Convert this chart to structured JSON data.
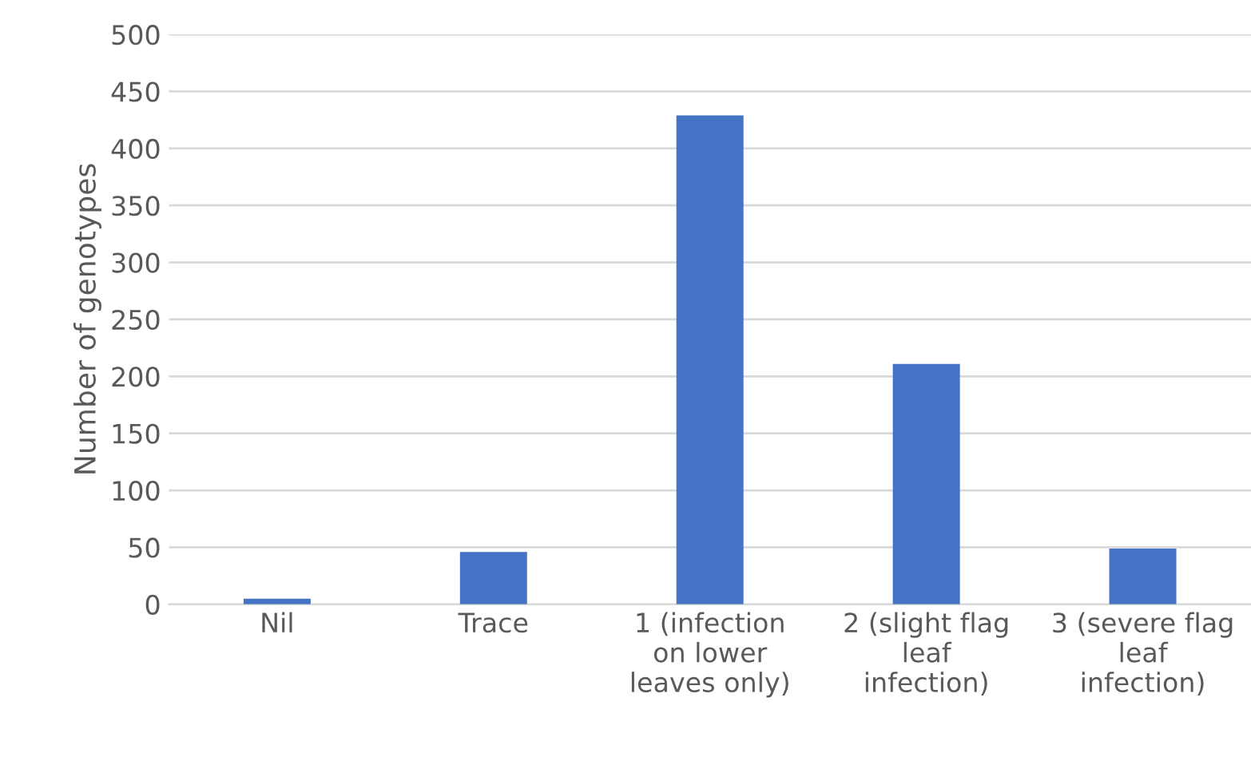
{
  "chart_data": {
    "type": "bar",
    "ylabel": "Number of genotypes",
    "categories": [
      "Nil",
      "Trace",
      "1 (infection on lower leaves only)",
      "2 (slight flag leaf infection)",
      "3 (severe flag leaf infection)"
    ],
    "values": [
      5,
      46,
      429,
      211,
      49
    ],
    "color": "#4472c4",
    "ylim": [
      0,
      500
    ],
    "yticks": [
      0,
      50,
      100,
      150,
      200,
      250,
      300,
      350,
      400,
      450,
      500
    ],
    "grid": "y"
  }
}
